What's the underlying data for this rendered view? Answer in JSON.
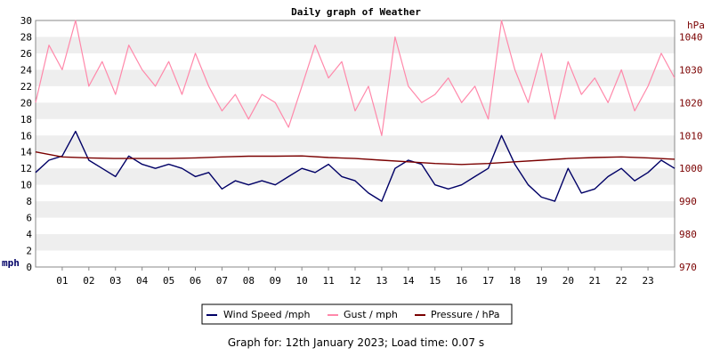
{
  "chart_data": {
    "type": "line",
    "title": "Daily graph of Weather",
    "y_left": {
      "unit": "mph",
      "range": [
        0,
        30
      ],
      "ticks": [
        0,
        2,
        4,
        6,
        8,
        10,
        12,
        14,
        16,
        18,
        20,
        22,
        24,
        26,
        28,
        30
      ]
    },
    "y_right": {
      "unit": "hPa",
      "range": [
        970,
        1045
      ],
      "ticks": [
        970,
        980,
        990,
        1000,
        1010,
        1020,
        1030,
        1040
      ]
    },
    "x": {
      "range": [
        0,
        24
      ],
      "tick_labels": [
        "01",
        "02",
        "03",
        "04",
        "05",
        "06",
        "07",
        "08",
        "09",
        "10",
        "11",
        "12",
        "13",
        "14",
        "15",
        "16",
        "17",
        "18",
        "19",
        "20",
        "21",
        "22",
        "23"
      ]
    },
    "grid": "horizontal bands",
    "legend_position": "bottom",
    "series": [
      {
        "name": "Wind Speed /mph",
        "axis": "left",
        "color": "#000066",
        "points": [
          [
            0,
            11.5
          ],
          [
            0.5,
            13
          ],
          [
            1,
            13.5
          ],
          [
            1.5,
            16.5
          ],
          [
            2,
            13
          ],
          [
            2.5,
            12
          ],
          [
            3,
            11
          ],
          [
            3.5,
            13.5
          ],
          [
            4,
            12.5
          ],
          [
            4.5,
            12
          ],
          [
            5,
            12.5
          ],
          [
            5.5,
            12
          ],
          [
            6,
            11
          ],
          [
            6.5,
            11.5
          ],
          [
            7,
            9.5
          ],
          [
            7.5,
            10.5
          ],
          [
            8,
            10
          ],
          [
            8.5,
            10.5
          ],
          [
            9,
            10
          ],
          [
            9.5,
            11
          ],
          [
            10,
            12
          ],
          [
            10.5,
            11.5
          ],
          [
            11,
            12.5
          ],
          [
            11.5,
            11
          ],
          [
            12,
            10.5
          ],
          [
            12.5,
            9
          ],
          [
            13,
            8
          ],
          [
            13.5,
            12
          ],
          [
            14,
            13
          ],
          [
            14.5,
            12.5
          ],
          [
            15,
            10
          ],
          [
            15.5,
            9.5
          ],
          [
            16,
            10
          ],
          [
            16.5,
            11
          ],
          [
            17,
            12
          ],
          [
            17.5,
            16
          ],
          [
            18,
            12.5
          ],
          [
            18.5,
            10
          ],
          [
            19,
            8.5
          ],
          [
            19.5,
            8
          ],
          [
            20,
            12
          ],
          [
            20.5,
            9
          ],
          [
            21,
            9.5
          ],
          [
            21.5,
            11
          ],
          [
            22,
            12
          ],
          [
            22.5,
            10.5
          ],
          [
            23,
            11.5
          ],
          [
            23.5,
            13
          ],
          [
            24,
            12
          ]
        ]
      },
      {
        "name": "Gust / mph",
        "axis": "left",
        "color": "#ff88aa",
        "points": [
          [
            0,
            20
          ],
          [
            0.5,
            27
          ],
          [
            1,
            24
          ],
          [
            1.5,
            30
          ],
          [
            2,
            22
          ],
          [
            2.5,
            25
          ],
          [
            3,
            21
          ],
          [
            3.5,
            27
          ],
          [
            4,
            24
          ],
          [
            4.5,
            22
          ],
          [
            5,
            25
          ],
          [
            5.5,
            21
          ],
          [
            6,
            26
          ],
          [
            6.5,
            22
          ],
          [
            7,
            19
          ],
          [
            7.5,
            21
          ],
          [
            8,
            18
          ],
          [
            8.5,
            21
          ],
          [
            9,
            20
          ],
          [
            9.5,
            17
          ],
          [
            10,
            22
          ],
          [
            10.5,
            27
          ],
          [
            11,
            23
          ],
          [
            11.5,
            25
          ],
          [
            12,
            19
          ],
          [
            12.5,
            22
          ],
          [
            13,
            16
          ],
          [
            13.5,
            28
          ],
          [
            14,
            22
          ],
          [
            14.5,
            20
          ],
          [
            15,
            21
          ],
          [
            15.5,
            23
          ],
          [
            16,
            20
          ],
          [
            16.5,
            22
          ],
          [
            17,
            18
          ],
          [
            17.5,
            30
          ],
          [
            18,
            24
          ],
          [
            18.5,
            20
          ],
          [
            19,
            26
          ],
          [
            19.5,
            18
          ],
          [
            20,
            25
          ],
          [
            20.5,
            21
          ],
          [
            21,
            23
          ],
          [
            21.5,
            20
          ],
          [
            22,
            24
          ],
          [
            22.5,
            19
          ],
          [
            23,
            22
          ],
          [
            23.5,
            26
          ],
          [
            24,
            23
          ]
        ]
      },
      {
        "name": "Pressure / hPa",
        "axis": "right",
        "color": "#7a0000",
        "points": [
          [
            0,
            1005
          ],
          [
            1,
            1003.5
          ],
          [
            2,
            1003.2
          ],
          [
            3,
            1003
          ],
          [
            4,
            1003
          ],
          [
            5,
            1003
          ],
          [
            6,
            1003.2
          ],
          [
            7,
            1003.5
          ],
          [
            8,
            1003.7
          ],
          [
            9,
            1003.7
          ],
          [
            10,
            1003.8
          ],
          [
            11,
            1003.3
          ],
          [
            12,
            1003
          ],
          [
            13,
            1002.5
          ],
          [
            14,
            1002
          ],
          [
            15,
            1001.5
          ],
          [
            16,
            1001.2
          ],
          [
            17,
            1001.5
          ],
          [
            18,
            1002
          ],
          [
            19,
            1002.5
          ],
          [
            20,
            1003
          ],
          [
            21,
            1003.3
          ],
          [
            22,
            1003.5
          ],
          [
            23,
            1003.2
          ],
          [
            24,
            1002.8
          ]
        ]
      }
    ]
  },
  "footer": {
    "text": "Graph for: 12th January 2023; Load time: 0.07 s"
  }
}
